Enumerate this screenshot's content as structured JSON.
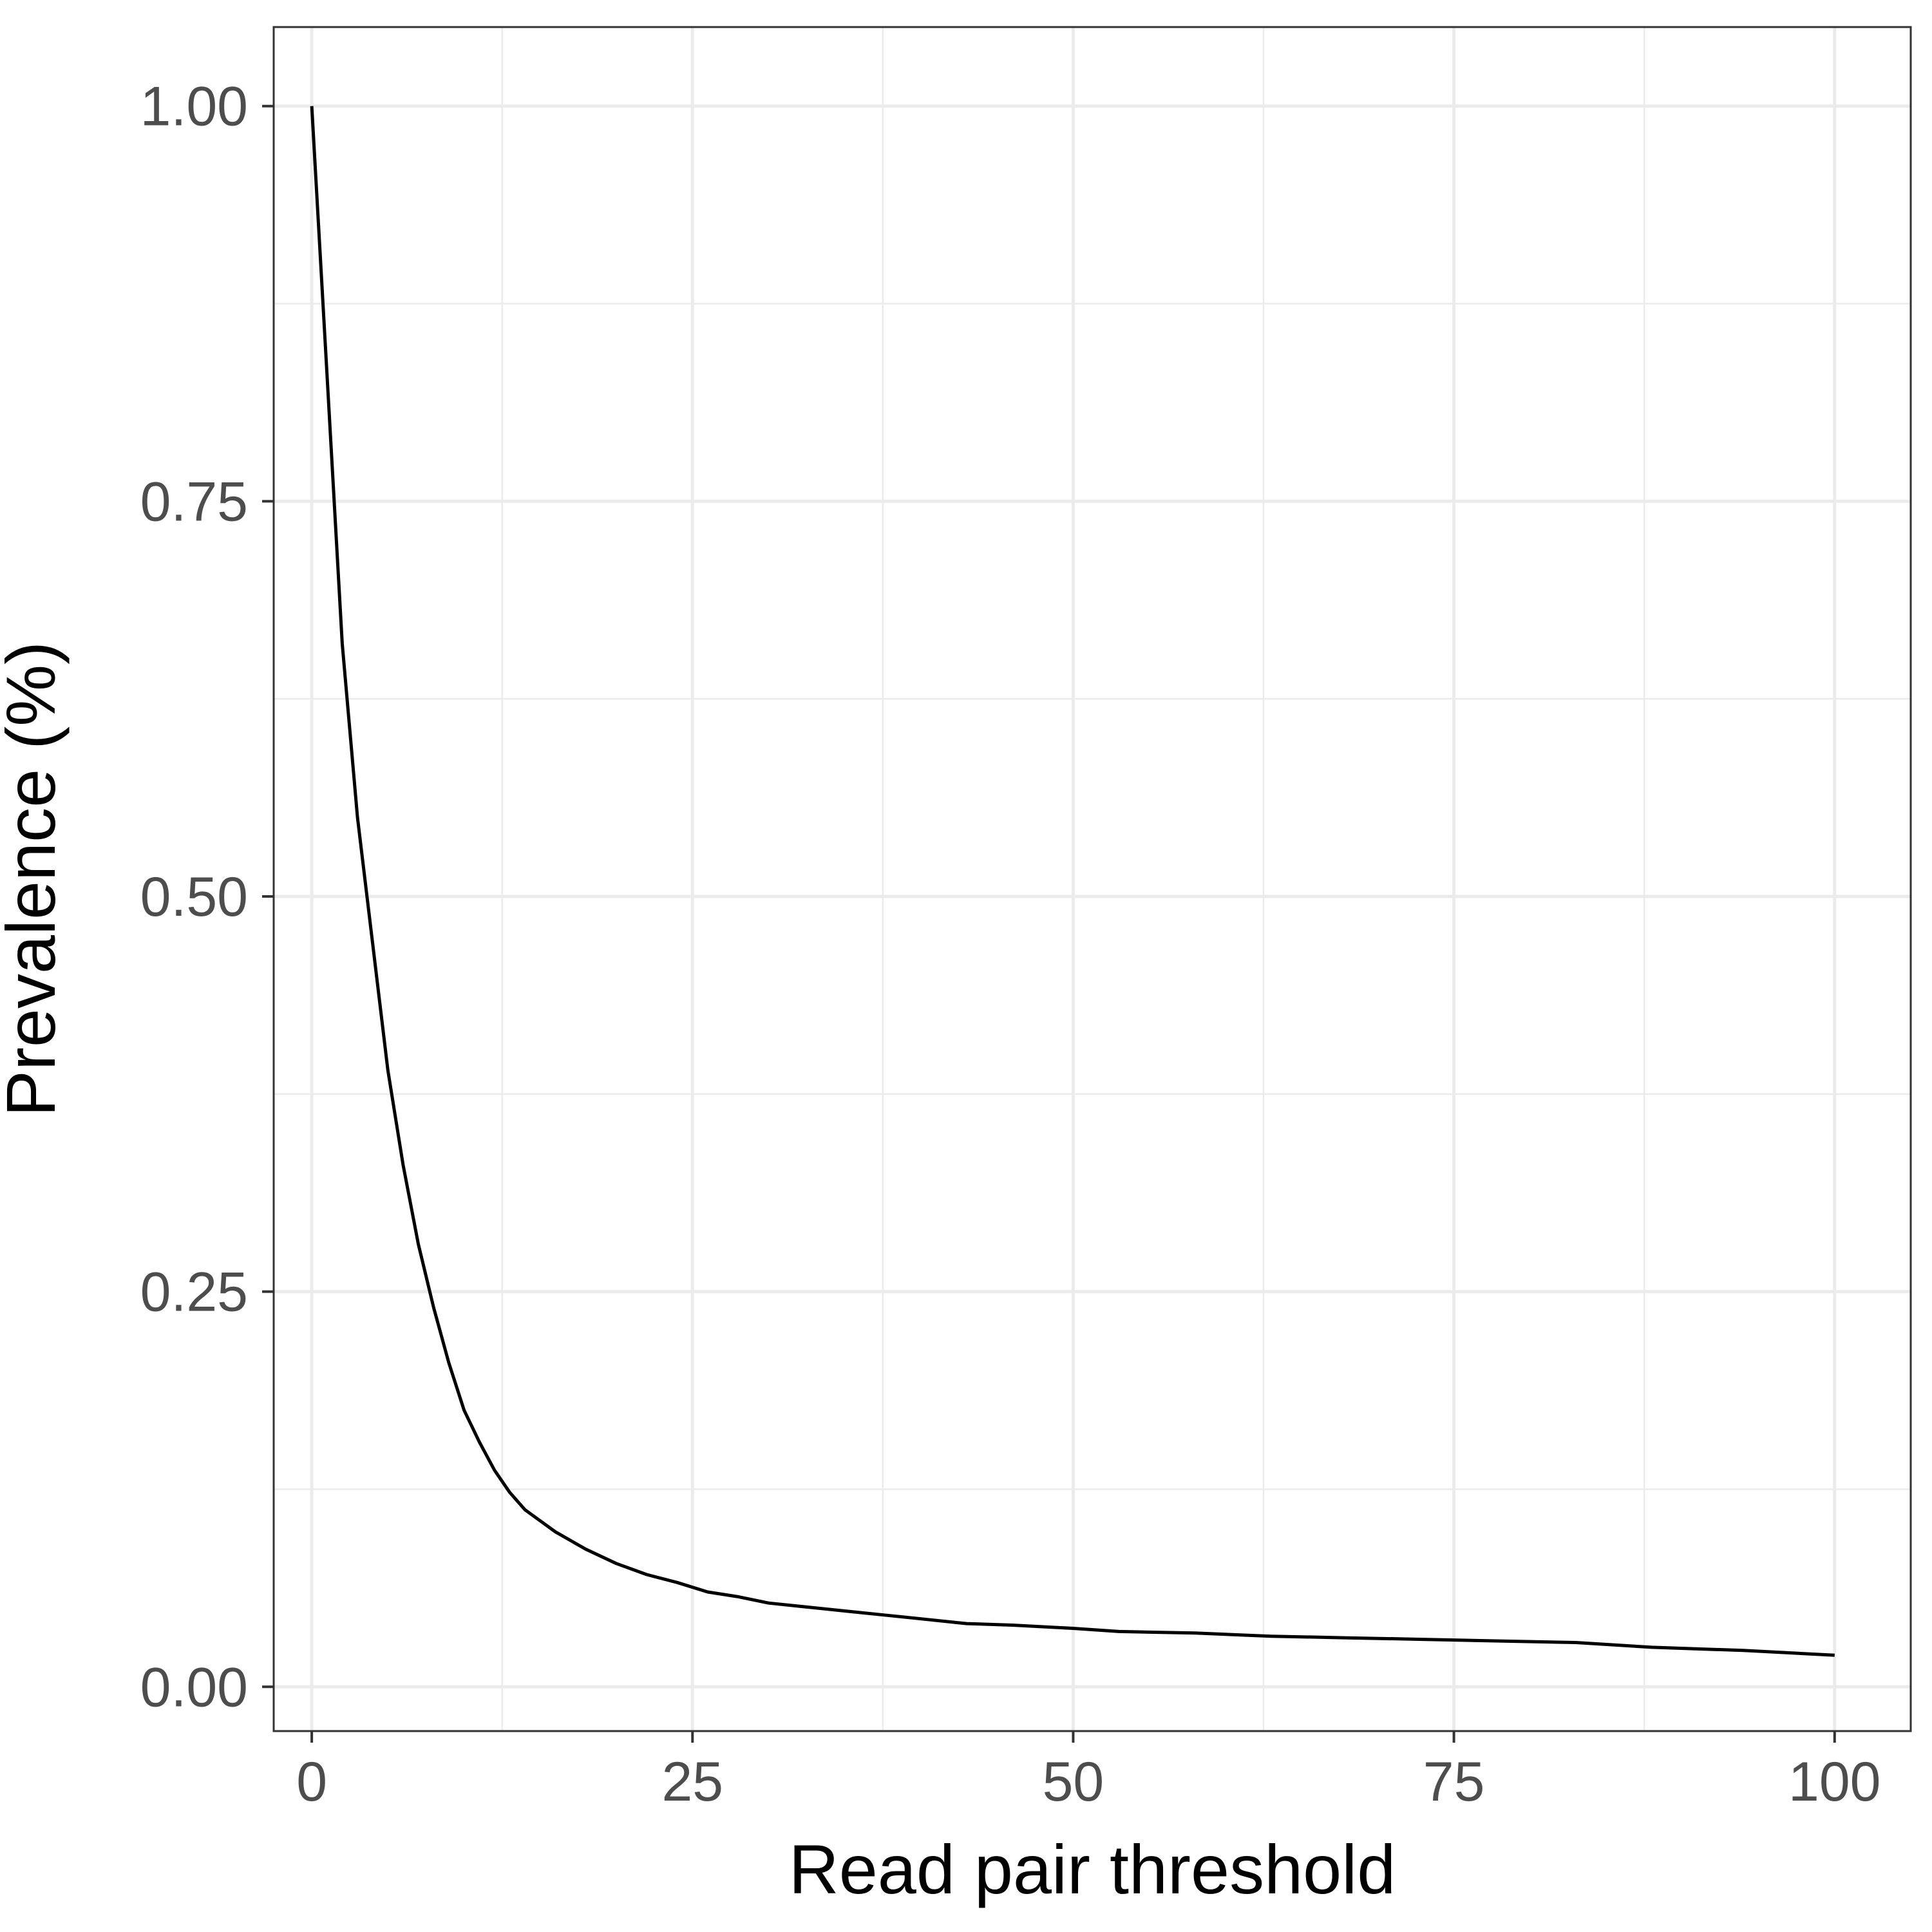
{
  "chart_data": {
    "type": "line",
    "title": "",
    "xlabel": "Read pair threshold",
    "ylabel": "Prevalence (%)",
    "xlim": [
      -2.5,
      105
    ],
    "ylim": [
      -0.028,
      1.05
    ],
    "x_ticks": [
      0,
      25,
      50,
      75,
      100
    ],
    "x_tick_labels": [
      "0",
      "25",
      "50",
      "75",
      "100"
    ],
    "y_ticks": [
      0,
      0.25,
      0.5,
      0.75,
      1.0
    ],
    "y_tick_labels": [
      "0.00",
      "0.25",
      "0.50",
      "0.75",
      "1.00"
    ],
    "x_minor": [
      12.5,
      37.5,
      62.5,
      87.5
    ],
    "y_minor": [
      0.125,
      0.375,
      0.625,
      0.875
    ],
    "grid": true,
    "legend": "none",
    "colors": {
      "line": "#000000",
      "grid": "#ebebeb",
      "panel_border": "#333333",
      "tick_text": "#4d4d4d",
      "axis_title": "#000000"
    },
    "series": [
      {
        "x": [
          0,
          1,
          2,
          3,
          4,
          5,
          6,
          7,
          8,
          9,
          10,
          11,
          12,
          13,
          14,
          15,
          16,
          18,
          20,
          22,
          24,
          26,
          28,
          30,
          32,
          35,
          38,
          40,
          43,
          46,
          50,
          53,
          58,
          63,
          68,
          73,
          78,
          83,
          88,
          94,
          100
        ],
        "y": [
          1.0,
          0.83,
          0.66,
          0.55,
          0.47,
          0.39,
          0.33,
          0.28,
          0.24,
          0.205,
          0.175,
          0.155,
          0.137,
          0.123,
          0.112,
          0.105,
          0.098,
          0.087,
          0.078,
          0.071,
          0.066,
          0.06,
          0.057,
          0.053,
          0.051,
          0.048,
          0.045,
          0.043,
          0.04,
          0.039,
          0.037,
          0.035,
          0.034,
          0.032,
          0.031,
          0.03,
          0.029,
          0.028,
          0.025,
          0.023,
          0.02
        ]
      }
    ]
  }
}
